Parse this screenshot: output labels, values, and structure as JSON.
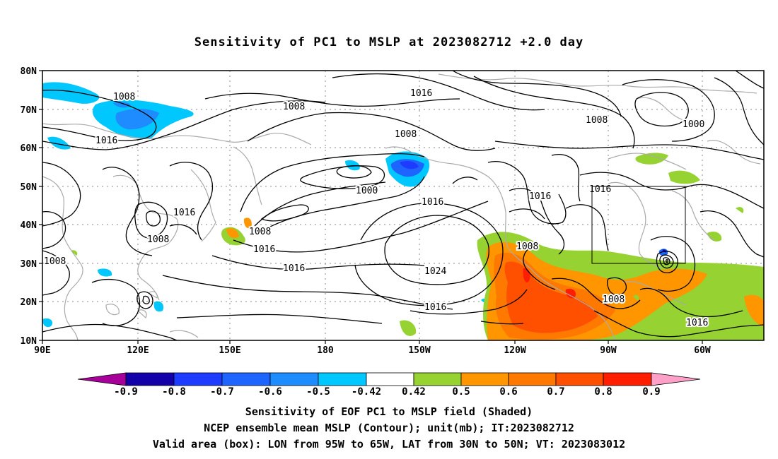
{
  "title": "Sensitivity of PC1 to MSLP at 2023082712 +2.0 day",
  "colors": {
    "neg_0_9": "#a8009a",
    "neg_0_8": "#1400a8",
    "neg_0_7": "#1e3cff",
    "neg_0_6": "#1e64ff",
    "neg_0_5": "#1e8cff",
    "neg_0_42": "#00c8ff",
    "neutral": "#ffffff",
    "pos_0_42": "#96d232",
    "pos_0_5": "#ff9600",
    "pos_0_6": "#ff7800",
    "pos_0_7": "#ff5000",
    "pos_0_8": "#ff1e00",
    "pos_0_9": "#ffa0c8",
    "coast": "#aaaaaa",
    "contour": "#000000"
  },
  "map": {
    "lon_labels": [
      "90E",
      "120E",
      "150E",
      "180",
      "150W",
      "120W",
      "90W",
      "60W"
    ],
    "lat_labels": [
      "80N",
      "70N",
      "60N",
      "50N",
      "40N",
      "30N",
      "20N",
      "10N"
    ],
    "contour_labels": [
      "1008",
      "1008",
      "1016",
      "1008",
      "1016",
      "1008",
      "1000",
      "1016",
      "1016",
      "1016",
      "1016",
      "1008",
      "1008",
      "1016",
      "1016",
      "1008",
      "1024",
      "1016",
      "1008",
      "1008",
      "1000",
      "1016",
      "1008"
    ],
    "valid_box": {
      "lon_min": -95,
      "lon_max": -65,
      "lat_min": 30,
      "lat_max": 50
    }
  },
  "colorbar": {
    "labels": [
      "-0.9",
      "-0.8",
      "-0.7",
      "-0.6",
      "-0.5",
      "-0.42",
      "0.42",
      "0.5",
      "0.6",
      "0.7",
      "0.8",
      "0.9"
    ]
  },
  "captions": {
    "line1": "Sensitivity of EOF PC1 to MSLP field (Shaded)",
    "line2": "NCEP ensemble mean MSLP (Contour); unit(mb); IT:2023082712",
    "line3": "Valid area (box): LON from 95W to 65W, LAT from 30N to 50N; VT: 2023083012"
  }
}
